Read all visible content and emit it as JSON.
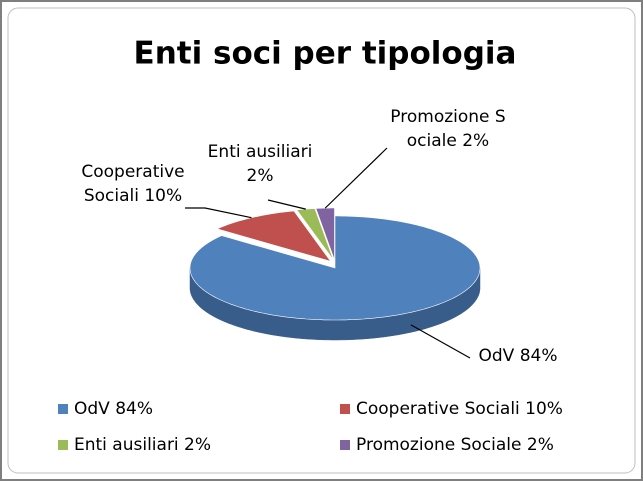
{
  "chart_data": {
    "type": "pie",
    "title": "Enti soci per tipologia",
    "categories": [
      "OdV 84%",
      "Cooperative Sociali 10%",
      "Enti ausiliari 2%",
      "Promozione Sociale 2%"
    ],
    "values": [
      84,
      10,
      2,
      2
    ],
    "colors": [
      "#4f81bd",
      "#c0504d",
      "#9bbb59",
      "#8064a2"
    ],
    "side_colors": [
      "#385d8a",
      "#8c3836",
      "#71893f",
      "#5c4776"
    ],
    "legend": "bottom"
  }
}
